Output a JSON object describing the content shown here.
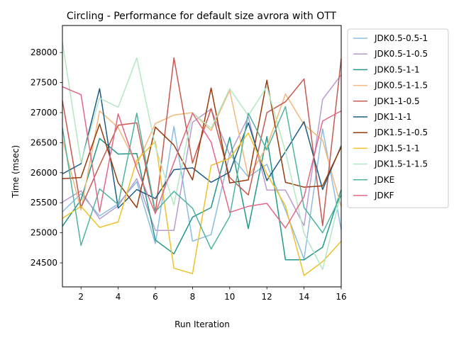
{
  "chart_data": {
    "type": "line",
    "title": "Circling - Performance for default size avrora with OTT",
    "xlabel": "Run Iteration",
    "ylabel": "Time (msec)",
    "xlim": [
      1,
      16
    ],
    "ylim": [
      24100,
      28450
    ],
    "x_ticks": [
      2,
      4,
      6,
      8,
      10,
      12,
      14,
      16
    ],
    "y_ticks": [
      24500,
      25000,
      25500,
      26000,
      26500,
      27000,
      27500,
      28000
    ],
    "grid": false,
    "legend_position": "outside-right",
    "x": [
      1,
      2,
      3,
      4,
      5,
      6,
      7,
      8,
      9,
      10,
      11,
      12,
      13,
      14,
      15,
      16
    ],
    "series": [
      {
        "name": "JDK0.5-0.5-1",
        "color": "#8bbde0",
        "values": [
          25350,
          25650,
          25280,
          25480,
          25850,
          24820,
          26770,
          24860,
          24970,
          26310,
          25930,
          26140,
          25380,
          24560,
          26730,
          25050
        ]
      },
      {
        "name": "JDK0.5-1-0.5",
        "color": "#b79bd2",
        "values": [
          25510,
          25700,
          25230,
          25450,
          25900,
          25040,
          25040,
          26840,
          27060,
          26300,
          26930,
          25710,
          25710,
          25120,
          27220,
          27630
        ]
      },
      {
        "name": "JDK0.5-1-1",
        "color": "#22998a",
        "values": [
          25110,
          25550,
          26570,
          26310,
          26320,
          24880,
          24650,
          25260,
          25420,
          26590,
          25070,
          26600,
          24550,
          24550,
          24760,
          25720
        ]
      },
      {
        "name": "JDK0.5-1-1.5",
        "color": "#f3b87a",
        "values": [
          26560,
          25380,
          27030,
          26750,
          26130,
          26820,
          26960,
          27000,
          26700,
          27370,
          25930,
          26430,
          27310,
          26800,
          26540,
          25430
        ]
      },
      {
        "name": "JDK1-1-0.5",
        "color": "#c8594f",
        "values": [
          27200,
          25420,
          26120,
          26790,
          26830,
          25330,
          27910,
          26160,
          27070,
          25920,
          25630,
          27000,
          27180,
          27560,
          25120,
          27900
        ]
      },
      {
        "name": "JDK1-1-1",
        "color": "#1b5e85",
        "values": [
          25980,
          26150,
          27400,
          25410,
          25720,
          25570,
          26050,
          26080,
          25840,
          26010,
          26830,
          25870,
          26350,
          26850,
          25720,
          26450
        ]
      },
      {
        "name": "JDK1.5-1-0.5",
        "color": "#9a3b0e",
        "values": [
          25900,
          25920,
          26810,
          25830,
          25420,
          26760,
          26460,
          25880,
          27410,
          25830,
          25880,
          27540,
          25840,
          25760,
          25780,
          26430
        ]
      },
      {
        "name": "JDK1.5-1-1",
        "color": "#f0c12a",
        "values": [
          25240,
          25440,
          25090,
          25180,
          26210,
          26520,
          24410,
          24320,
          26120,
          26240,
          26660,
          25980,
          25450,
          24290,
          24520,
          24860
        ]
      },
      {
        "name": "JDK1.5-1-1.5",
        "color": "#b3e8c4",
        "values": [
          28170,
          26170,
          27240,
          27090,
          27910,
          26440,
          25460,
          27000,
          26740,
          27400,
          26950,
          27430,
          26350,
          24990,
          24390,
          25680
        ]
      },
      {
        "name": "JDKE",
        "color": "#4fb49f",
        "values": [
          26750,
          24790,
          25730,
          25470,
          26990,
          25350,
          25690,
          25410,
          24730,
          25270,
          26990,
          26380,
          27100,
          25420,
          25000,
          25630
        ]
      },
      {
        "name": "JDKF",
        "color": "#e36785",
        "values": [
          27430,
          27300,
          25350,
          26980,
          26070,
          25320,
          26170,
          26990,
          26510,
          25340,
          25440,
          25490,
          25080,
          25600,
          26860,
          27030
        ]
      }
    ]
  }
}
